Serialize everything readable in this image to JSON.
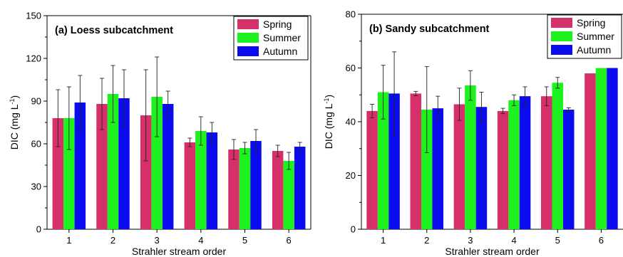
{
  "colors": {
    "Spring": "#d6306a",
    "Summer": "#1ef21e",
    "Autumn": "#0b0bf0"
  },
  "chart_data": [
    {
      "type": "bar",
      "title": "(a) Loess subcatchment",
      "xlabel": "Strahler stream order",
      "ylabel_main": "DIC (mg L",
      "ylabel_sup": "-1",
      "ylabel_end": ")",
      "categories": [
        "1",
        "2",
        "3",
        "4",
        "5",
        "6"
      ],
      "ylim": [
        0,
        150
      ],
      "yticks": [
        "0",
        "30",
        "60",
        "90",
        "120",
        "150"
      ],
      "legend_position": "top-right",
      "series": [
        {
          "name": "Spring",
          "values": [
            78,
            88,
            80,
            61,
            56,
            55
          ],
          "errors": [
            20,
            18,
            32,
            3,
            7,
            4
          ]
        },
        {
          "name": "Summer",
          "values": [
            78,
            95,
            93,
            69,
            57,
            48
          ],
          "errors": [
            22,
            20,
            28,
            10,
            4,
            6
          ]
        },
        {
          "name": "Autumn",
          "values": [
            89,
            92,
            88,
            68,
            62,
            58
          ],
          "errors": [
            19,
            20,
            9,
            7,
            8,
            3
          ]
        }
      ]
    },
    {
      "type": "bar",
      "title": "(b) Sandy subcatchment",
      "xlabel": "Strahler stream order",
      "ylabel_main": "DIC (mg L",
      "ylabel_sup": "-1",
      "ylabel_end": ")",
      "categories": [
        "1",
        "2",
        "3",
        "4",
        "5",
        "6"
      ],
      "ylim": [
        0,
        80
      ],
      "yticks": [
        "0",
        "20",
        "40",
        "60",
        "80"
      ],
      "legend_position": "top-right",
      "series": [
        {
          "name": "Spring",
          "values": [
            44,
            50.5,
            46.5,
            44,
            49.5,
            58
          ],
          "errors": [
            2.5,
            0.8,
            6,
            1,
            3.5,
            0
          ]
        },
        {
          "name": "Summer",
          "values": [
            51,
            44.5,
            53.5,
            48,
            54.5,
            60
          ],
          "errors": [
            10,
            16,
            5.5,
            2,
            2,
            0
          ]
        },
        {
          "name": "Autumn",
          "values": [
            50.5,
            45,
            45.5,
            49.5,
            44.5,
            60
          ],
          "errors": [
            15.5,
            4.5,
            5.5,
            3.5,
            0.7,
            0
          ]
        }
      ]
    }
  ]
}
